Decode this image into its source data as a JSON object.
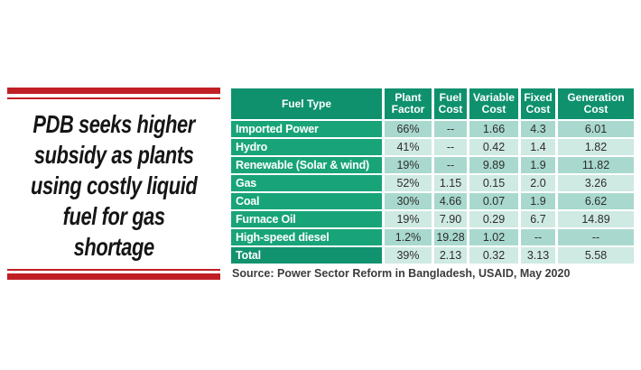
{
  "headline": {
    "lines": [
      "PDB seeks higher",
      "subsidy as plants",
      "using costly liquid",
      "fuel for gas",
      "shortage"
    ]
  },
  "table": {
    "columns": [
      "Fuel Type",
      "Plant\nFactor",
      "Fuel\nCost",
      "Variable\nCost",
      "Fixed\nCost",
      "Generation\nCost"
    ],
    "rows": [
      {
        "fuel_type": "Imported Power",
        "plant_factor": "66%",
        "fuel_cost": "--",
        "variable_cost": "1.66",
        "fixed_cost": "4.3",
        "generation_cost": "6.01"
      },
      {
        "fuel_type": "Hydro",
        "plant_factor": "41%",
        "fuel_cost": "--",
        "variable_cost": "0.42",
        "fixed_cost": "1.4",
        "generation_cost": "1.82"
      },
      {
        "fuel_type": "Renewable (Solar & wind)",
        "plant_factor": "19%",
        "fuel_cost": "--",
        "variable_cost": "9.89",
        "fixed_cost": "1.9",
        "generation_cost": "11.82"
      },
      {
        "fuel_type": "Gas",
        "plant_factor": "52%",
        "fuel_cost": "1.15",
        "variable_cost": "0.15",
        "fixed_cost": "2.0",
        "generation_cost": "3.26"
      },
      {
        "fuel_type": "Coal",
        "plant_factor": "30%",
        "fuel_cost": "4.66",
        "variable_cost": "0.07",
        "fixed_cost": "1.9",
        "generation_cost": "6.62"
      },
      {
        "fuel_type": "Furnace Oil",
        "plant_factor": "19%",
        "fuel_cost": "7.90",
        "variable_cost": "0.29",
        "fixed_cost": "6.7",
        "generation_cost": "14.89"
      },
      {
        "fuel_type": "High-speed diesel",
        "plant_factor": "1.2%",
        "fuel_cost": "19.28",
        "variable_cost": "1.02",
        "fixed_cost": "--",
        "generation_cost": "--"
      },
      {
        "fuel_type": "Total",
        "plant_factor": "39%",
        "fuel_cost": "2.13",
        "variable_cost": "0.32",
        "fixed_cost": "3.13",
        "generation_cost": "5.58"
      }
    ]
  },
  "source": {
    "text": "Source: Power Sector Reform in Bangladesh, USAID, May 2020"
  },
  "colors": {
    "red": "#c01f25",
    "header-green": "#0f916e",
    "label-green": "#18a478",
    "total-green": "#11936f",
    "cell-dark": "#a9d9ce",
    "cell-light": "#cfe9e3",
    "headline-ink": "#151515"
  }
}
